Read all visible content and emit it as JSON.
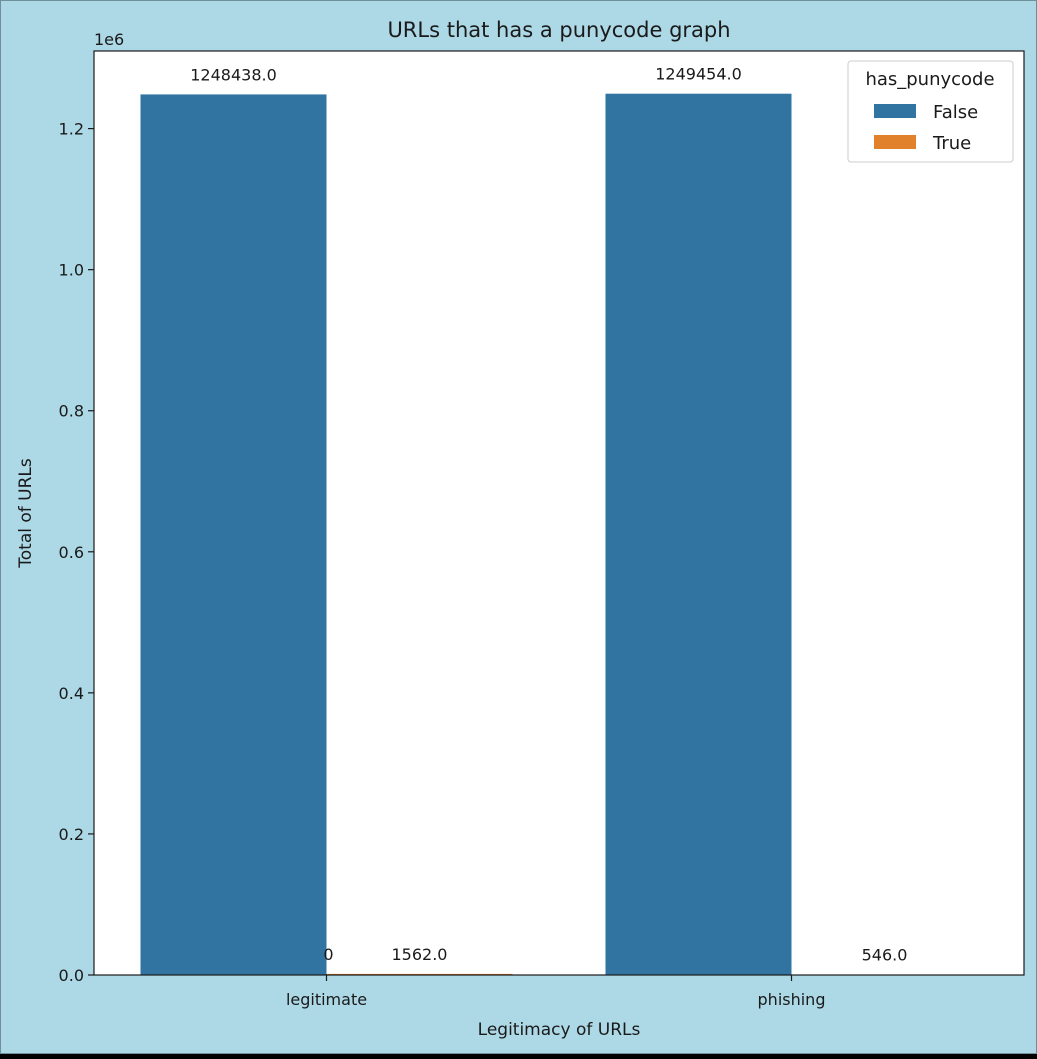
{
  "chart_data": {
    "type": "bar",
    "title": "URLs that has a punycode graph",
    "xlabel": "Legitimacy of URLs",
    "ylabel": "Total of URLs",
    "y_scale_label": "1e6",
    "categories": [
      "legitimate",
      "phishing"
    ],
    "series": [
      {
        "name": "False",
        "color": "#3274a1",
        "values": [
          1248438,
          1249454
        ],
        "value_labels": [
          "1248438.0",
          "1249454.0"
        ]
      },
      {
        "name": "True",
        "color": "#e1812c",
        "values": [
          1562,
          546
        ],
        "value_labels": [
          "1562.0",
          "546.0"
        ]
      }
    ],
    "extra_annotation": "0",
    "ylim": [
      0,
      1310000
    ],
    "yticks": [
      0,
      200000,
      400000,
      600000,
      800000,
      1000000,
      1200000
    ],
    "ytick_labels": [
      "0.0",
      "0.2",
      "0.4",
      "0.6",
      "0.8",
      "1.0",
      "1.2"
    ],
    "grid": false,
    "legend": {
      "title": "has_punycode",
      "placement": "top-right",
      "entries": [
        "False",
        "True"
      ]
    },
    "colors": {
      "figure_background": "#add8e6",
      "plot_background": "#ffffff",
      "axis": "#1a1a1a"
    }
  }
}
